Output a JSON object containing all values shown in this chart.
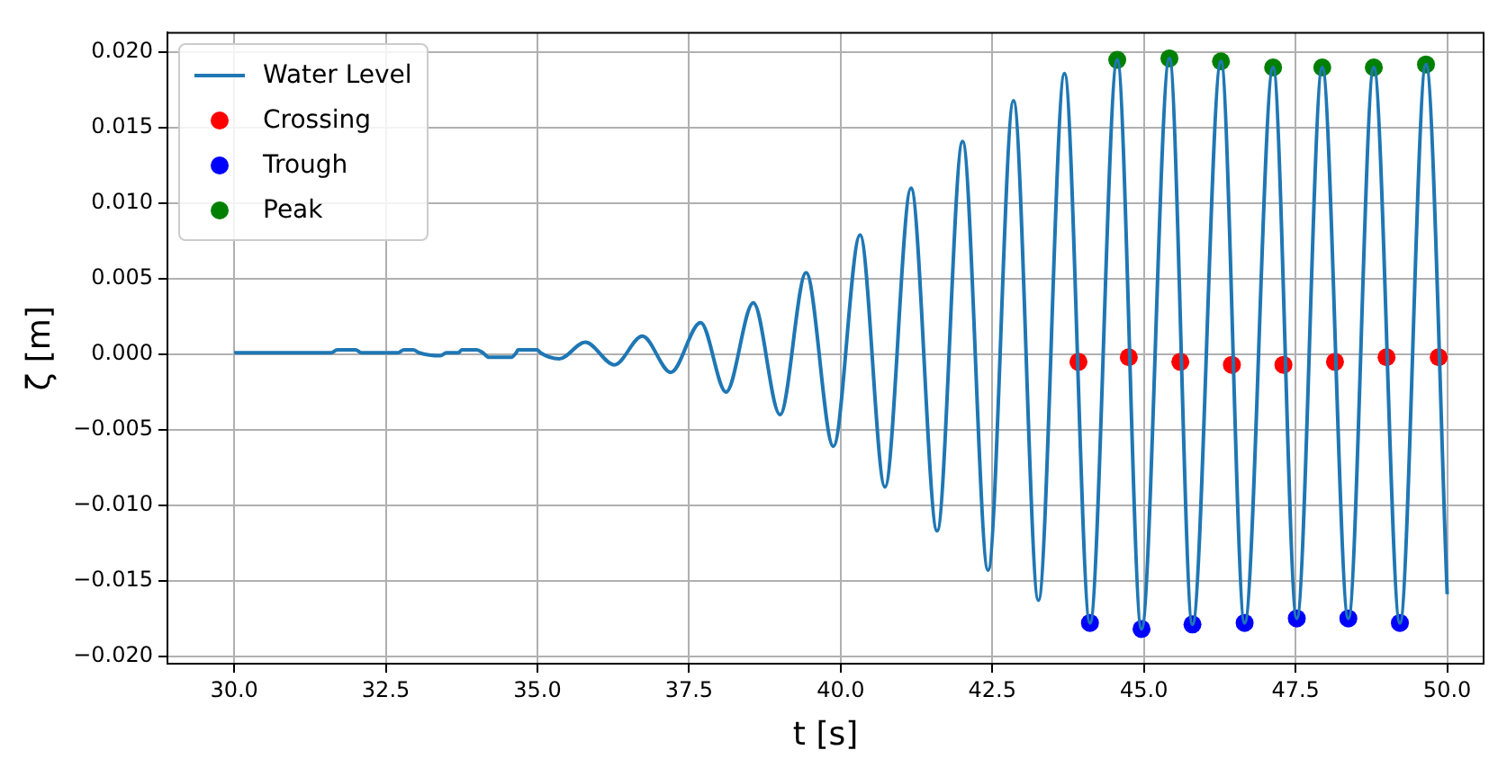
{
  "chart_data": {
    "type": "line",
    "xlabel": "t [s]",
    "ylabel": "ζ [m]",
    "xlim": [
      28.9,
      50.6
    ],
    "ylim": [
      -0.0205,
      0.0213
    ],
    "xticks": [
      {
        "value": 30,
        "label": "30.0"
      },
      {
        "value": 32.5,
        "label": "32.5"
      },
      {
        "value": 35,
        "label": "35.0"
      },
      {
        "value": 37.5,
        "label": "37.5"
      },
      {
        "value": 40,
        "label": "40.0"
      },
      {
        "value": 42.5,
        "label": "42.5"
      },
      {
        "value": 45,
        "label": "45.0"
      },
      {
        "value": 47.5,
        "label": "47.5"
      },
      {
        "value": 50,
        "label": "50.0"
      }
    ],
    "yticks": [
      {
        "value": -0.02,
        "label": "−0.020"
      },
      {
        "value": -0.015,
        "label": "−0.015"
      },
      {
        "value": -0.01,
        "label": "−0.010"
      },
      {
        "value": -0.005,
        "label": "−0.005"
      },
      {
        "value": 0,
        "label": "0.000"
      },
      {
        "value": 0.005,
        "label": "0.005"
      },
      {
        "value": 0.01,
        "label": "0.010"
      },
      {
        "value": 0.015,
        "label": "0.015"
      },
      {
        "value": 0.02,
        "label": "0.020"
      }
    ],
    "grid": true,
    "legend": "top left",
    "series": [
      {
        "name": "Water Level",
        "type": "line",
        "marker": "none",
        "color": "#1f77b4",
        "x": [
          30,
          31.6,
          31.7,
          32.0,
          32.1,
          32.7,
          32.8,
          32.95,
          33.05,
          33.4,
          33.5,
          33.7,
          33.75,
          34.0,
          34.1,
          34.2,
          34.57,
          34.65,
          34.68,
          35.0,
          35.05,
          35.36,
          35.79,
          36.27,
          36.73,
          37.2,
          37.69,
          38.11,
          38.56,
          39.0,
          39.43,
          39.88,
          40.32,
          40.73,
          41.16,
          41.59,
          42.01,
          42.43,
          42.85,
          43.26,
          43.69,
          44.11,
          44.56,
          44.96,
          45.42,
          45.8,
          46.27,
          46.66,
          47.13,
          47.52,
          47.94,
          48.37,
          48.79,
          49.22,
          49.65,
          50.0
        ],
        "values": [
          0.0001,
          0.0001,
          0.0003,
          0.0003,
          0.0001,
          0.0001,
          0.0003,
          0.0003,
          0.0001,
          -0.0001,
          0.0001,
          0.0001,
          0.0003,
          0.0003,
          0.0001,
          -0.0002,
          -0.0002,
          0.0001,
          0.0003,
          0.0003,
          0.0001,
          -0.0003,
          0.0008,
          -0.0007,
          0.0012,
          -0.0012,
          0.0021,
          -0.0025,
          0.0034,
          -0.004,
          0.0054,
          -0.0061,
          0.0079,
          -0.0088,
          0.011,
          -0.0117,
          0.0141,
          -0.0143,
          0.0168,
          -0.0163,
          0.0186,
          -0.0178,
          0.0195,
          -0.0182,
          0.0196,
          -0.0179,
          0.0194,
          -0.0178,
          0.019,
          -0.0175,
          0.019,
          -0.0175,
          0.019,
          -0.0178,
          0.0192,
          -0.0159
        ]
      },
      {
        "name": "Crossing",
        "type": "scatter",
        "marker": "circle",
        "color": "#ff0000",
        "x": [
          43.92,
          44.75,
          45.6,
          46.45,
          47.3,
          48.15,
          49.0,
          49.86
        ],
        "values": [
          -0.0005,
          -0.0002,
          -0.0005,
          -0.0007,
          -0.0007,
          -0.0005,
          -0.0002,
          -0.0002
        ]
      },
      {
        "name": "Trough",
        "type": "scatter",
        "marker": "circle",
        "color": "#0000ff",
        "x": [
          44.11,
          44.96,
          45.8,
          46.66,
          47.52,
          48.37,
          49.22
        ],
        "values": [
          -0.0178,
          -0.0182,
          -0.0179,
          -0.0178,
          -0.0175,
          -0.0175,
          -0.0178
        ]
      },
      {
        "name": "Peak",
        "type": "scatter",
        "marker": "circle",
        "color": "#008000",
        "x": [
          44.56,
          45.42,
          46.27,
          47.13,
          47.94,
          48.79,
          49.65
        ],
        "values": [
          0.0195,
          0.0196,
          0.0194,
          0.019,
          0.019,
          0.019,
          0.0192
        ]
      }
    ]
  }
}
